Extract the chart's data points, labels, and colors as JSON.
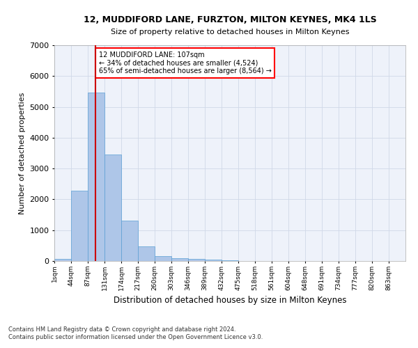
{
  "title1": "12, MUDDIFORD LANE, FURZTON, MILTON KEYNES, MK4 1LS",
  "title2": "Size of property relative to detached houses in Milton Keynes",
  "xlabel": "Distribution of detached houses by size in Milton Keynes",
  "ylabel": "Number of detached properties",
  "footnote1": "Contains HM Land Registry data © Crown copyright and database right 2024.",
  "footnote2": "Contains public sector information licensed under the Open Government Licence v3.0.",
  "annotation_line1": "12 MUDDIFORD LANE: 107sqm",
  "annotation_line2": "← 34% of detached houses are smaller (4,524)",
  "annotation_line3": "65% of semi-detached houses are larger (8,564) →",
  "bar_color": "#aec6e8",
  "bar_edge_color": "#5a9fd4",
  "grid_color": "#d0d8e8",
  "background_color": "#eef2fa",
  "red_line_color": "#cc0000",
  "property_size_sqm": 107,
  "bin_edges": [
    1,
    44,
    87,
    130,
    173,
    216,
    259,
    302,
    345,
    388,
    431,
    474,
    517,
    560,
    603,
    646,
    689,
    732,
    775,
    818,
    861,
    904
  ],
  "bin_labels": [
    "1sqm",
    "44sqm",
    "87sqm",
    "131sqm",
    "174sqm",
    "217sqm",
    "260sqm",
    "303sqm",
    "346sqm",
    "389sqm",
    "432sqm",
    "475sqm",
    "518sqm",
    "561sqm",
    "604sqm",
    "648sqm",
    "691sqm",
    "734sqm",
    "777sqm",
    "820sqm",
    "863sqm"
  ],
  "counts": [
    75,
    2280,
    5475,
    3450,
    1310,
    470,
    160,
    100,
    70,
    50,
    20,
    8,
    3,
    2,
    1,
    1,
    1,
    0,
    0,
    0,
    0
  ],
  "ylim": [
    0,
    7000
  ],
  "yticks": [
    0,
    1000,
    2000,
    3000,
    4000,
    5000,
    6000,
    7000
  ]
}
